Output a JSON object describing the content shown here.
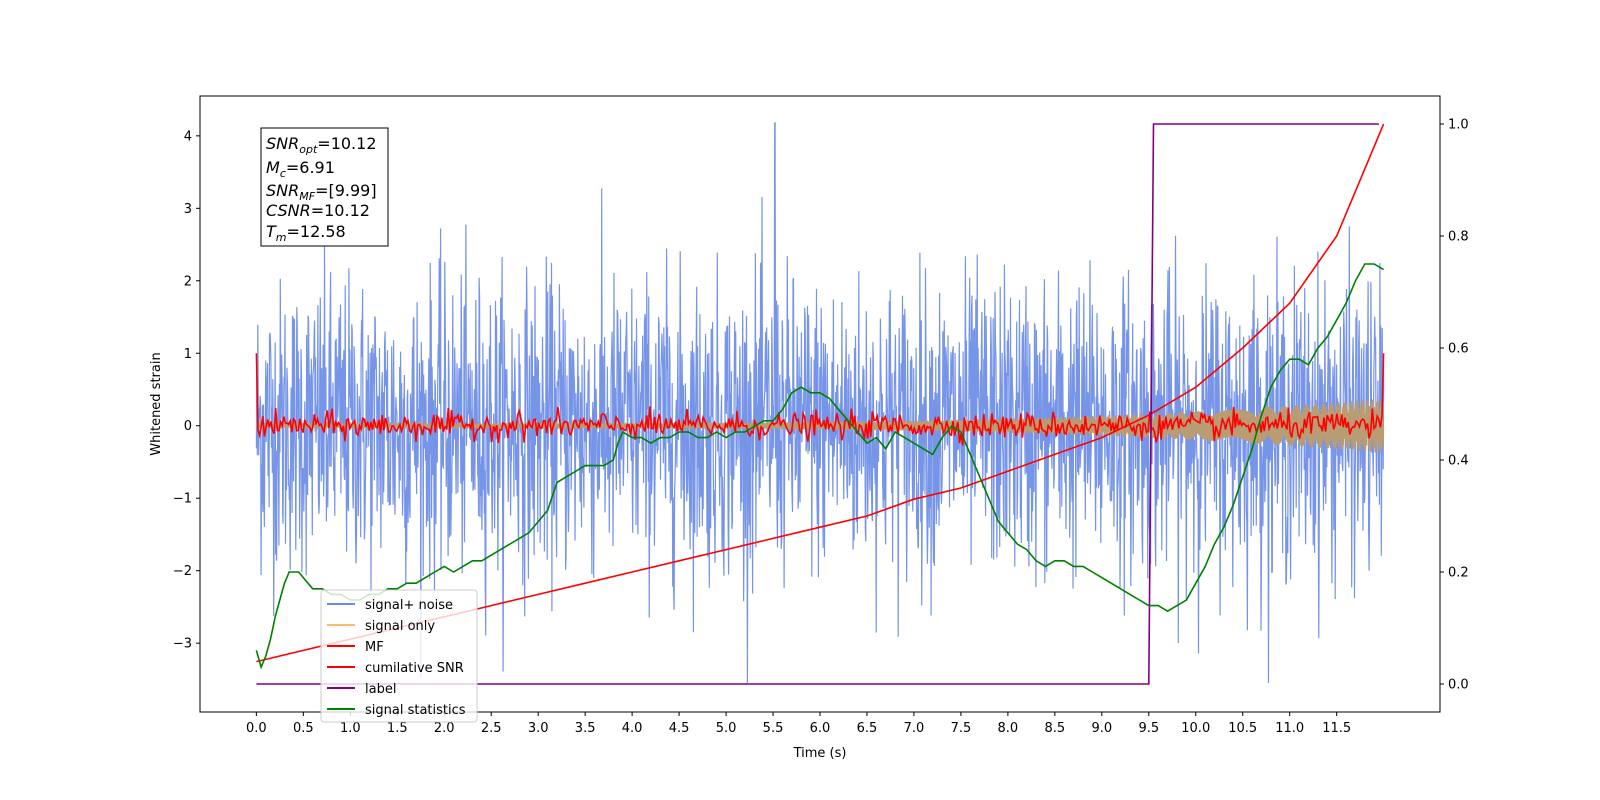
{
  "chart_data": {
    "type": "line",
    "xlabel": "Time (s)",
    "ylabel": "Whitened strain",
    "xlim": [
      -0.6,
      12.6
    ],
    "ylim": [
      -3.95,
      4.55
    ],
    "y2lim": [
      -0.05,
      1.05
    ],
    "x_ticks": [
      "0.0",
      "0.5",
      "1.0",
      "1.5",
      "2.0",
      "2.5",
      "3.0",
      "3.5",
      "4.0",
      "4.5",
      "5.0",
      "5.5",
      "6.0",
      "6.5",
      "7.0",
      "7.5",
      "8.0",
      "8.5",
      "9.0",
      "9.5",
      "10.0",
      "10.5",
      "11.0",
      "11.5"
    ],
    "y_ticks": [
      "4",
      "3",
      "2",
      "1",
      "0",
      "−1",
      "−2",
      "−3"
    ],
    "y2_ticks": [
      "1.0",
      "0.8",
      "0.6",
      "0.4",
      "0.2",
      "0.0"
    ],
    "grid": false,
    "legend_position": "lower-left",
    "annotation": {
      "lines": [
        {
          "sym": "SNR",
          "sub": "opt",
          "value": "=10.12"
        },
        {
          "sym": "M",
          "sub": "c",
          "value": "=6.91"
        },
        {
          "sym": "SNR",
          "sub": "MF",
          "value": "=[9.99]"
        },
        {
          "sym": "CSNR",
          "sub": "",
          "value": "=10.12"
        },
        {
          "sym": "T",
          "sub": "m",
          "value": "=12.58"
        }
      ]
    },
    "series": [
      {
        "name": "signal+ noise",
        "color": "#6a8be6",
        "axis": "left",
        "kind": "noise",
        "t_range": [
          0.0,
          12.0
        ],
        "std": 1.0,
        "peak_value": 4.18,
        "peak_t": 5.52
      },
      {
        "name": "signal only",
        "color": "#f5c16c",
        "axis": "left",
        "kind": "chirp",
        "t_range": [
          0.0,
          12.0
        ],
        "amplitude_start": 0.03,
        "amplitude_end": 0.38
      },
      {
        "name": "MF",
        "color": "#ff0000",
        "axis": "left",
        "kind": "mf",
        "t_range": [
          0.0,
          12.0
        ],
        "start_value": 1.0,
        "end_value": 1.0,
        "std": 0.09
      },
      {
        "name": "cumilative SNR",
        "color": "#ff0000",
        "axis": "right",
        "points": [
          [
            0.0,
            0.04
          ],
          [
            0.5,
            0.06
          ],
          [
            1.0,
            0.08
          ],
          [
            1.5,
            0.1
          ],
          [
            2.0,
            0.12
          ],
          [
            2.5,
            0.14
          ],
          [
            3.0,
            0.16
          ],
          [
            3.5,
            0.18
          ],
          [
            4.0,
            0.2
          ],
          [
            4.5,
            0.22
          ],
          [
            5.0,
            0.24
          ],
          [
            5.5,
            0.26
          ],
          [
            6.0,
            0.28
          ],
          [
            6.5,
            0.3
          ],
          [
            7.0,
            0.33
          ],
          [
            7.5,
            0.35
          ],
          [
            8.0,
            0.38
          ],
          [
            8.5,
            0.41
          ],
          [
            9.0,
            0.44
          ],
          [
            9.5,
            0.48
          ],
          [
            10.0,
            0.53
          ],
          [
            10.5,
            0.6
          ],
          [
            11.0,
            0.68
          ],
          [
            11.5,
            0.8
          ],
          [
            12.0,
            1.0
          ]
        ]
      },
      {
        "name": "label",
        "color": "#800080",
        "axis": "right",
        "points": [
          [
            0.0,
            0.0
          ],
          [
            9.5,
            0.0
          ],
          [
            9.55,
            1.0
          ],
          [
            11.95,
            1.0
          ]
        ]
      },
      {
        "name": "signal statistics",
        "color": "#008000",
        "axis": "right",
        "points": [
          [
            0.0,
            0.06
          ],
          [
            0.05,
            0.03
          ],
          [
            0.1,
            0.05
          ],
          [
            0.15,
            0.08
          ],
          [
            0.2,
            0.12
          ],
          [
            0.25,
            0.15
          ],
          [
            0.3,
            0.18
          ],
          [
            0.35,
            0.2
          ],
          [
            0.4,
            0.2
          ],
          [
            0.45,
            0.2
          ],
          [
            0.5,
            0.19
          ],
          [
            0.6,
            0.17
          ],
          [
            0.7,
            0.17
          ],
          [
            0.8,
            0.16
          ],
          [
            0.9,
            0.16
          ],
          [
            1.0,
            0.15
          ],
          [
            1.1,
            0.15
          ],
          [
            1.2,
            0.16
          ],
          [
            1.3,
            0.16
          ],
          [
            1.4,
            0.17
          ],
          [
            1.5,
            0.17
          ],
          [
            1.6,
            0.18
          ],
          [
            1.7,
            0.18
          ],
          [
            1.8,
            0.19
          ],
          [
            1.9,
            0.2
          ],
          [
            2.0,
            0.21
          ],
          [
            2.1,
            0.2
          ],
          [
            2.2,
            0.21
          ],
          [
            2.3,
            0.22
          ],
          [
            2.4,
            0.22
          ],
          [
            2.5,
            0.23
          ],
          [
            2.6,
            0.24
          ],
          [
            2.7,
            0.25
          ],
          [
            2.8,
            0.26
          ],
          [
            2.9,
            0.27
          ],
          [
            3.0,
            0.29
          ],
          [
            3.1,
            0.31
          ],
          [
            3.2,
            0.36
          ],
          [
            3.3,
            0.37
          ],
          [
            3.4,
            0.38
          ],
          [
            3.5,
            0.39
          ],
          [
            3.6,
            0.39
          ],
          [
            3.7,
            0.39
          ],
          [
            3.8,
            0.4
          ],
          [
            3.85,
            0.43
          ],
          [
            3.9,
            0.45
          ],
          [
            4.0,
            0.44
          ],
          [
            4.1,
            0.44
          ],
          [
            4.2,
            0.43
          ],
          [
            4.3,
            0.44
          ],
          [
            4.4,
            0.44
          ],
          [
            4.5,
            0.45
          ],
          [
            4.6,
            0.45
          ],
          [
            4.7,
            0.44
          ],
          [
            4.8,
            0.44
          ],
          [
            4.9,
            0.45
          ],
          [
            5.0,
            0.44
          ],
          [
            5.1,
            0.45
          ],
          [
            5.2,
            0.45
          ],
          [
            5.3,
            0.46
          ],
          [
            5.4,
            0.47
          ],
          [
            5.5,
            0.47
          ],
          [
            5.6,
            0.49
          ],
          [
            5.7,
            0.52
          ],
          [
            5.8,
            0.53
          ],
          [
            5.9,
            0.52
          ],
          [
            6.0,
            0.52
          ],
          [
            6.1,
            0.51
          ],
          [
            6.2,
            0.49
          ],
          [
            6.3,
            0.47
          ],
          [
            6.4,
            0.45
          ],
          [
            6.5,
            0.43
          ],
          [
            6.6,
            0.44
          ],
          [
            6.7,
            0.42
          ],
          [
            6.8,
            0.45
          ],
          [
            6.9,
            0.44
          ],
          [
            7.0,
            0.43
          ],
          [
            7.1,
            0.42
          ],
          [
            7.2,
            0.41
          ],
          [
            7.3,
            0.44
          ],
          [
            7.4,
            0.46
          ],
          [
            7.5,
            0.45
          ],
          [
            7.6,
            0.41
          ],
          [
            7.7,
            0.37
          ],
          [
            7.8,
            0.33
          ],
          [
            7.9,
            0.29
          ],
          [
            8.0,
            0.27
          ],
          [
            8.1,
            0.25
          ],
          [
            8.2,
            0.24
          ],
          [
            8.3,
            0.22
          ],
          [
            8.4,
            0.21
          ],
          [
            8.5,
            0.22
          ],
          [
            8.6,
            0.22
          ],
          [
            8.7,
            0.21
          ],
          [
            8.8,
            0.21
          ],
          [
            8.9,
            0.2
          ],
          [
            9.0,
            0.19
          ],
          [
            9.1,
            0.18
          ],
          [
            9.2,
            0.17
          ],
          [
            9.3,
            0.16
          ],
          [
            9.4,
            0.15
          ],
          [
            9.5,
            0.14
          ],
          [
            9.6,
            0.14
          ],
          [
            9.7,
            0.13
          ],
          [
            9.8,
            0.14
          ],
          [
            9.9,
            0.15
          ],
          [
            10.0,
            0.18
          ],
          [
            10.1,
            0.21
          ],
          [
            10.2,
            0.25
          ],
          [
            10.3,
            0.28
          ],
          [
            10.4,
            0.32
          ],
          [
            10.5,
            0.37
          ],
          [
            10.6,
            0.42
          ],
          [
            10.7,
            0.48
          ],
          [
            10.8,
            0.53
          ],
          [
            10.9,
            0.56
          ],
          [
            11.0,
            0.58
          ],
          [
            11.1,
            0.58
          ],
          [
            11.2,
            0.57
          ],
          [
            11.3,
            0.6
          ],
          [
            11.4,
            0.62
          ],
          [
            11.5,
            0.65
          ],
          [
            11.6,
            0.68
          ],
          [
            11.7,
            0.72
          ],
          [
            11.8,
            0.75
          ],
          [
            11.9,
            0.75
          ],
          [
            12.0,
            0.74
          ]
        ]
      }
    ]
  }
}
